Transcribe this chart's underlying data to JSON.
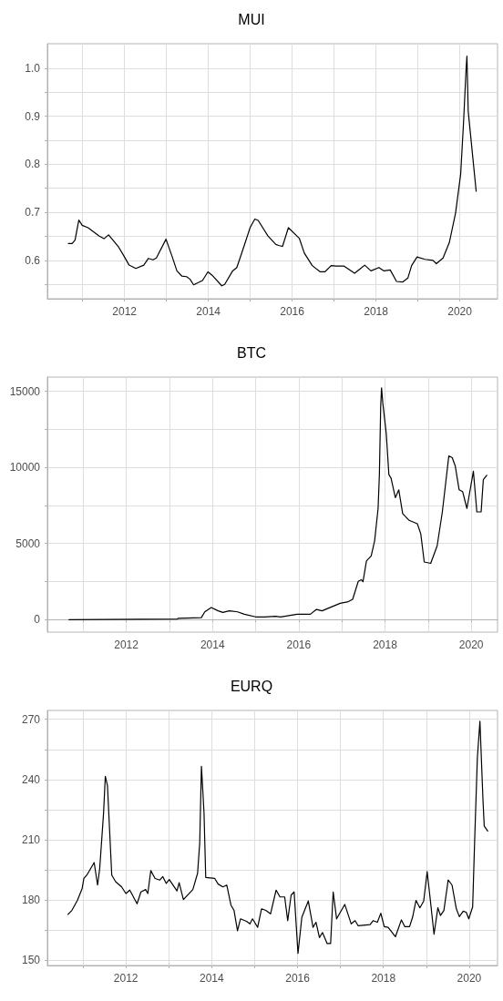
{
  "chart_data": [
    {
      "type": "line",
      "title": "MUI",
      "grid": true,
      "marker": "none",
      "line_style": "solid",
      "xlim": [
        2010.16,
        2020.9
      ],
      "ylim": [
        0.52,
        1.051
      ],
      "xticks": [
        {
          "value": 2011,
          "label": null
        },
        2012,
        {
          "value": 2013,
          "label": null
        },
        2014,
        {
          "value": 2015,
          "label": null
        },
        2016,
        {
          "value": 2017,
          "label": null
        },
        2018,
        {
          "value": 2019,
          "label": null
        },
        2020
      ],
      "yticks": [
        {
          "value": 0.55,
          "label": null
        },
        0.6,
        {
          "value": 0.65,
          "label": null
        },
        0.7,
        {
          "value": 0.75,
          "label": null
        },
        0.8,
        {
          "value": 0.85,
          "label": null
        },
        0.9,
        {
          "value": 0.95,
          "label": null
        },
        {
          "value": 1,
          "label": "1.0"
        }
      ],
      "series": [
        {
          "color": "#000000",
          "x": [
            2010.66,
            2010.75,
            2010.82,
            2010.91,
            2010.99,
            2011.13,
            2011.39,
            2011.51,
            2011.62,
            2011.85,
            2012.0,
            2012.11,
            2012.27,
            2012.46,
            2012.57,
            2012.68,
            2012.76,
            2012.99,
            2013.14,
            2013.25,
            2013.37,
            2013.48,
            2013.56,
            2013.65,
            2013.86,
            2013.99,
            2014.09,
            2014.32,
            2014.39,
            2014.58,
            2014.68,
            2014.85,
            2015.0,
            2015.11,
            2015.19,
            2015.42,
            2015.61,
            2015.68,
            2015.77,
            2015.91,
            2016.17,
            2016.29,
            2016.48,
            2016.67,
            2016.78,
            2016.93,
            2017.05,
            2017.24,
            2017.49,
            2017.62,
            2017.73,
            2017.88,
            2018.07,
            2018.19,
            2018.34,
            2018.49,
            2018.64,
            2018.76,
            2018.85,
            2018.98,
            2019.17,
            2019.36,
            2019.44,
            2019.6,
            2019.75,
            2019.9,
            2020.02,
            2020.09,
            2020.15,
            2020.17,
            2020.2,
            2020.39
          ],
          "values": [
            0.635,
            0.635,
            0.642,
            0.684,
            0.673,
            0.668,
            0.651,
            0.645,
            0.653,
            0.629,
            0.607,
            0.59,
            0.583,
            0.59,
            0.604,
            0.601,
            0.605,
            0.644,
            0.607,
            0.578,
            0.567,
            0.566,
            0.561,
            0.549,
            0.558,
            0.576,
            0.569,
            0.547,
            0.55,
            0.578,
            0.585,
            0.629,
            0.669,
            0.686,
            0.683,
            0.651,
            0.633,
            0.631,
            0.629,
            0.668,
            0.646,
            0.615,
            0.589,
            0.576,
            0.576,
            0.589,
            0.588,
            0.588,
            0.573,
            0.582,
            0.59,
            0.578,
            0.585,
            0.578,
            0.58,
            0.556,
            0.555,
            0.563,
            0.589,
            0.607,
            0.602,
            0.6,
            0.593,
            0.605,
            0.637,
            0.699,
            0.779,
            0.889,
            0.999,
            1.025,
            0.911,
            0.744
          ]
        }
      ]
    },
    {
      "type": "line",
      "title": "BTC",
      "grid": true,
      "marker": "none",
      "line_style": "solid",
      "xlim": [
        2010.17,
        2020.61
      ],
      "ylim": [
        -820,
        15930
      ],
      "xticks": [
        {
          "value": 2011,
          "label": null
        },
        2012,
        {
          "value": 2013,
          "label": null
        },
        2014,
        {
          "value": 2015,
          "label": null
        },
        2016,
        {
          "value": 2017,
          "label": null
        },
        2018,
        {
          "value": 2019,
          "label": null
        },
        2020
      ],
      "yticks": [
        0,
        {
          "value": 2500,
          "label": null
        },
        5000,
        {
          "value": 7500,
          "label": null
        },
        10000,
        {
          "value": 12500,
          "label": null
        },
        15000
      ],
      "series": [
        {
          "color": "#000000",
          "x": [
            2010.67,
            2013.19,
            2013.2,
            2013.74,
            2013.82,
            2013.97,
            2014.13,
            2014.24,
            2014.39,
            2014.58,
            2014.74,
            2015.0,
            2015.2,
            2015.46,
            2015.58,
            2015.96,
            2016.27,
            2016.41,
            2016.54,
            2016.73,
            2016.96,
            2017.15,
            2017.25,
            2017.38,
            2017.45,
            2017.49,
            2017.57,
            2017.68,
            2017.76,
            2017.84,
            2017.87,
            2017.9,
            2017.92,
            2017.95,
            2018.03,
            2018.09,
            2018.14,
            2018.24,
            2018.32,
            2018.41,
            2018.56,
            2018.75,
            2018.83,
            2018.91,
            2019.06,
            2019.21,
            2019.33,
            2019.48,
            2019.56,
            2019.63,
            2019.72,
            2019.8,
            2019.9,
            2020.05,
            2020.13,
            2020.23,
            2020.28,
            2020.36
          ],
          "values": [
            0,
            45,
            90,
            130,
            510,
            800,
            580,
            470,
            580,
            510,
            355,
            180,
            180,
            220,
            180,
            355,
            355,
            670,
            580,
            800,
            1070,
            1180,
            1335,
            2515,
            2625,
            2490,
            3850,
            4185,
            5185,
            7300,
            9525,
            13975,
            15220,
            14200,
            12200,
            9525,
            9300,
            8010,
            8525,
            6965,
            6520,
            6300,
            5630,
            3785,
            3695,
            4850,
            7075,
            10750,
            10640,
            10080,
            8525,
            8410,
            7300,
            9750,
            7075,
            7075,
            9190,
            9480
          ]
        }
      ]
    },
    {
      "type": "line",
      "title": "EURQ",
      "grid": true,
      "marker": "none",
      "line_style": "solid",
      "xlim": [
        2010.17,
        2020.66
      ],
      "ylim": [
        147.5,
        274.4
      ],
      "xticks": [
        {
          "value": 2011,
          "label": null
        },
        2012,
        {
          "value": 2013,
          "label": null
        },
        2014,
        {
          "value": 2015,
          "label": null
        },
        2016,
        {
          "value": 2017,
          "label": null
        },
        2018,
        {
          "value": 2019,
          "label": null
        },
        2020
      ],
      "yticks": [
        150,
        {
          "value": 165,
          "label": null
        },
        180,
        {
          "value": 195,
          "label": null
        },
        210,
        {
          "value": 225,
          "label": null
        },
        240,
        {
          "value": 255,
          "label": null
        },
        270
      ],
      "series": [
        {
          "color": "#000000",
          "x": [
            2010.65,
            2010.74,
            2010.87,
            2010.98,
            2011.02,
            2011.09,
            2011.26,
            2011.34,
            2011.39,
            2011.48,
            2011.52,
            2011.57,
            2011.67,
            2011.76,
            2011.9,
            2012.0,
            2012.09,
            2012.26,
            2012.35,
            2012.46,
            2012.51,
            2012.58,
            2012.68,
            2012.79,
            2012.86,
            2012.94,
            2013.01,
            2013.19,
            2013.24,
            2013.34,
            2013.56,
            2013.67,
            2013.72,
            2013.76,
            2013.82,
            2013.86,
            2014.07,
            2014.15,
            2014.26,
            2014.35,
            2014.45,
            2014.52,
            2014.6,
            2014.67,
            2014.81,
            2014.89,
            2014.95,
            2015.07,
            2015.16,
            2015.26,
            2015.37,
            2015.5,
            2015.59,
            2015.7,
            2015.77,
            2015.85,
            2015.92,
            2016.01,
            2016.1,
            2016.25,
            2016.36,
            2016.43,
            2016.51,
            2016.58,
            2016.69,
            2016.77,
            2016.83,
            2016.91,
            2017.1,
            2017.25,
            2017.34,
            2017.41,
            2017.69,
            2017.76,
            2017.86,
            2017.94,
            2018.02,
            2018.11,
            2018.28,
            2018.42,
            2018.5,
            2018.61,
            2018.68,
            2018.76,
            2018.85,
            2018.94,
            2019.02,
            2019.09,
            2019.18,
            2019.27,
            2019.33,
            2019.41,
            2019.51,
            2019.6,
            2019.7,
            2019.77,
            2019.86,
            2019.93,
            2019.99,
            2020.08,
            2020.13,
            2020.19,
            2020.25,
            2020.32,
            2020.35,
            2020.43
          ],
          "values": [
            172.9,
            174.9,
            179.9,
            185.8,
            190.8,
            192.5,
            198.7,
            187.5,
            195.9,
            223.6,
            241.6,
            237.1,
            192.5,
            189.2,
            186.6,
            183.3,
            185,
            178.2,
            184.1,
            185.3,
            183.3,
            194.7,
            190.8,
            190,
            191.7,
            188.3,
            190.3,
            184.6,
            188.7,
            180.3,
            185.3,
            193.4,
            208.5,
            246.6,
            223.6,
            191.3,
            190.8,
            188,
            186.6,
            187.5,
            177.4,
            174.9,
            164.8,
            170.7,
            169.5,
            168.2,
            170.7,
            166.5,
            175.7,
            174.9,
            173.2,
            185,
            181.6,
            181.6,
            169.8,
            182.5,
            184.1,
            153.5,
            171.5,
            179.6,
            166.5,
            169,
            161.4,
            163.9,
            158.4,
            158.4,
            184.1,
            170.7,
            177.9,
            168.2,
            169.8,
            167.3,
            167.8,
            169.8,
            169,
            173.5,
            166.8,
            166.5,
            161.8,
            170.2,
            166.8,
            166.8,
            171.5,
            179.9,
            176.2,
            179.6,
            194.2,
            180.8,
            163.1,
            176.2,
            172.4,
            174.9,
            190,
            187.5,
            175.7,
            171.8,
            174.5,
            174,
            170.7,
            176.6,
            211.8,
            250.8,
            269,
            230.3,
            216.9,
            214.4
          ]
        }
      ]
    }
  ]
}
